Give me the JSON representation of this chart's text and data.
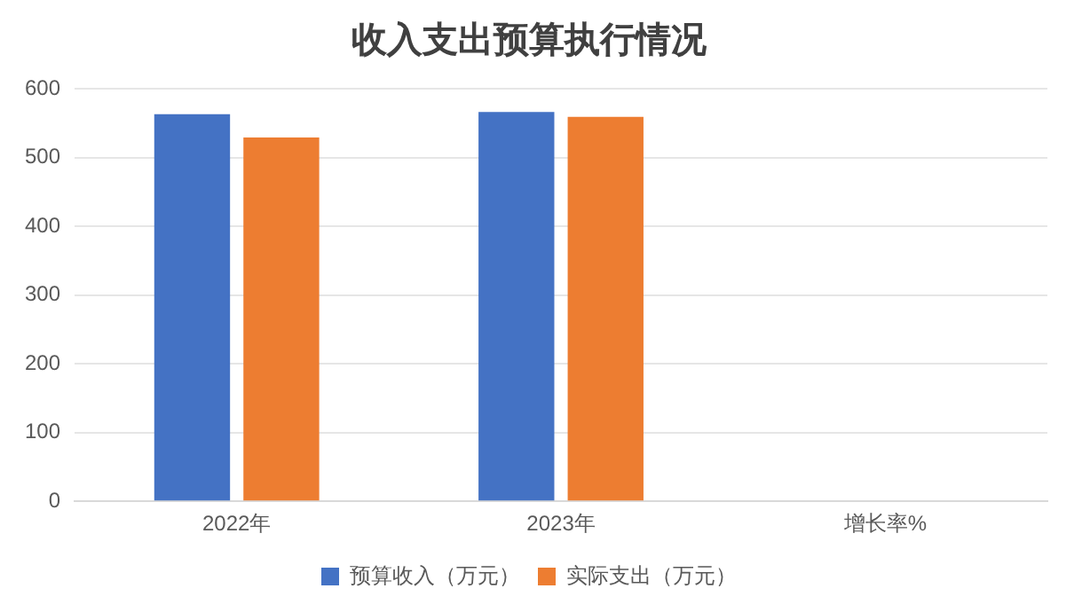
{
  "chart_data": {
    "type": "bar",
    "title": "收入支出预算执行情况",
    "categories": [
      "2022年",
      "2023年",
      "增长率%"
    ],
    "series": [
      {
        "name": "预算收入（万元）",
        "color": "#4472c4",
        "values": [
          563,
          566,
          null
        ]
      },
      {
        "name": "实际支出（万元）",
        "color": "#ed7d31",
        "values": [
          529,
          559,
          null
        ]
      }
    ],
    "ylim": [
      0,
      600
    ],
    "yticks": [
      0,
      100,
      200,
      300,
      400,
      500,
      600
    ],
    "grid": "y",
    "legend": "bottom"
  }
}
